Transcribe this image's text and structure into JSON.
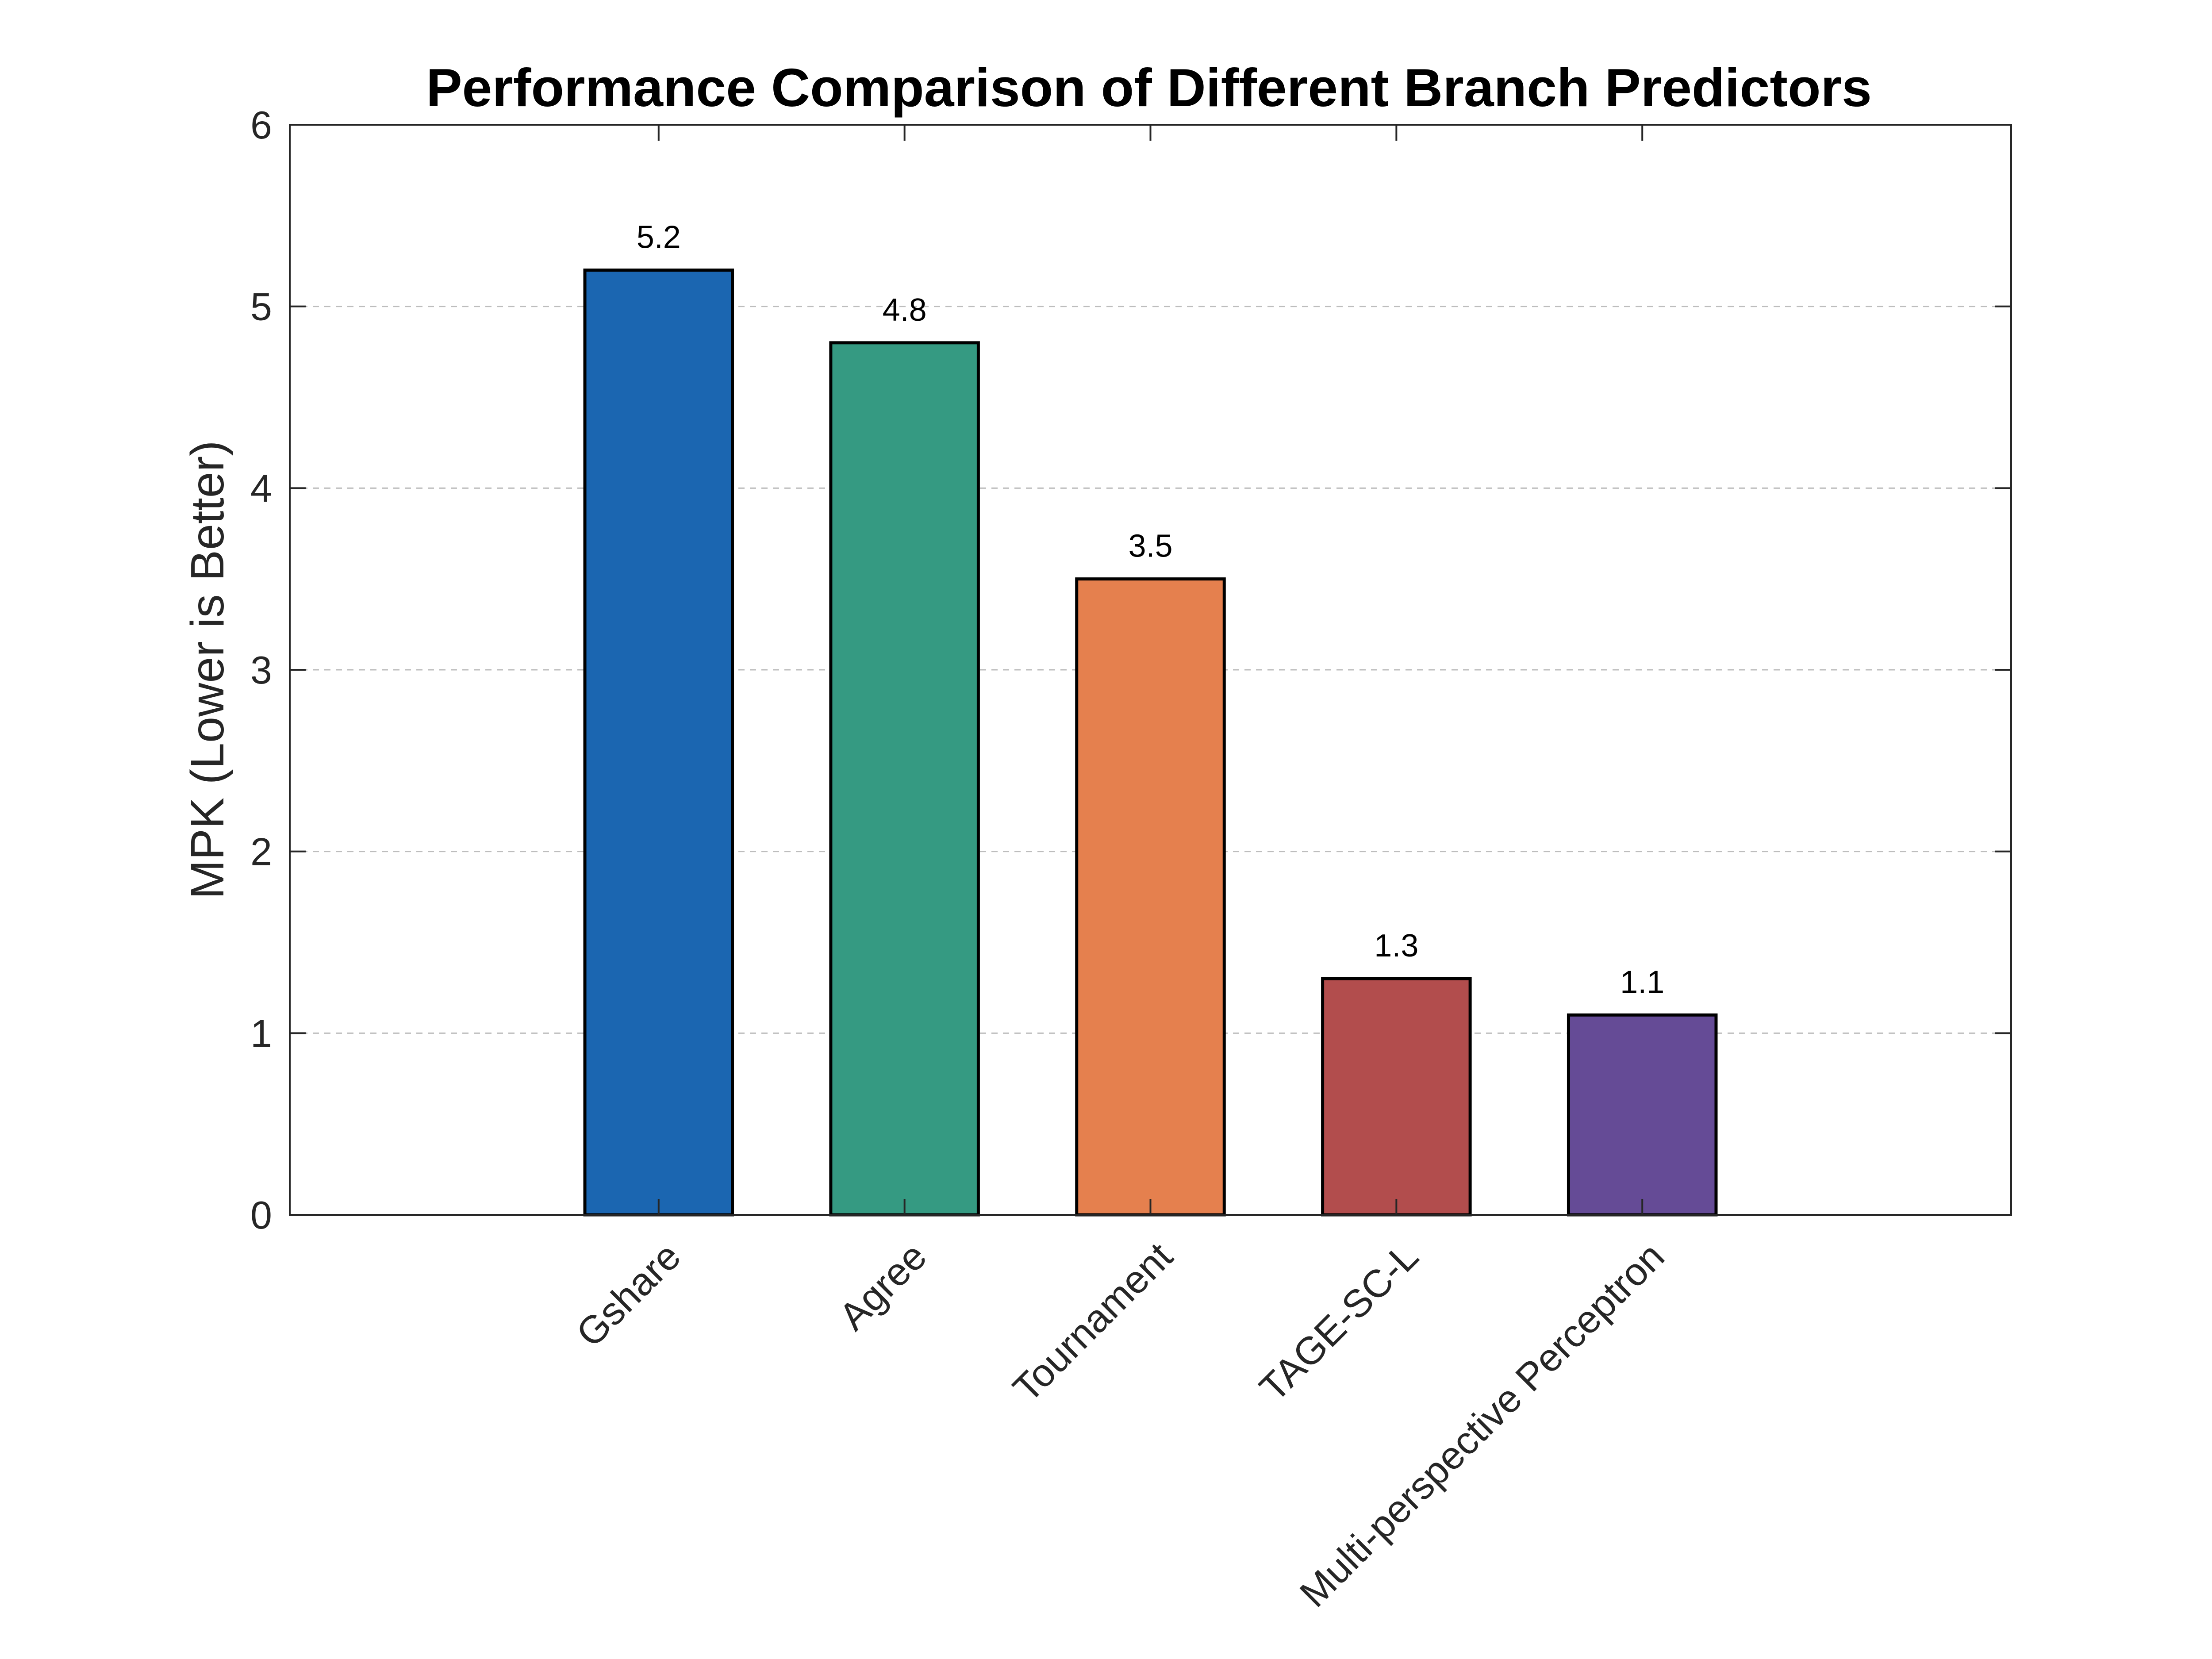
{
  "chart_data": {
    "type": "bar",
    "title": "Performance Comparison of Different Branch Predictors",
    "xlabel": "",
    "ylabel": "MPK (Lower is Better)",
    "ylim": [
      0,
      6
    ],
    "yticks": [
      0,
      1,
      2,
      3,
      4,
      5,
      6
    ],
    "categories": [
      "Gshare",
      "Agree",
      "Tournament",
      "TAGE-SC-L",
      "Multi-perspective Perceptron"
    ],
    "values": [
      5.2,
      4.8,
      3.5,
      1.3,
      1.1
    ],
    "data_labels": [
      "5.2",
      "4.8",
      "3.5",
      "1.3",
      "1.1"
    ],
    "colors": [
      "#1b66b1",
      "#359a82",
      "#e5804e",
      "#b24d4d",
      "#654b96"
    ],
    "grid": "horizontal dashed",
    "legend": "none"
  }
}
